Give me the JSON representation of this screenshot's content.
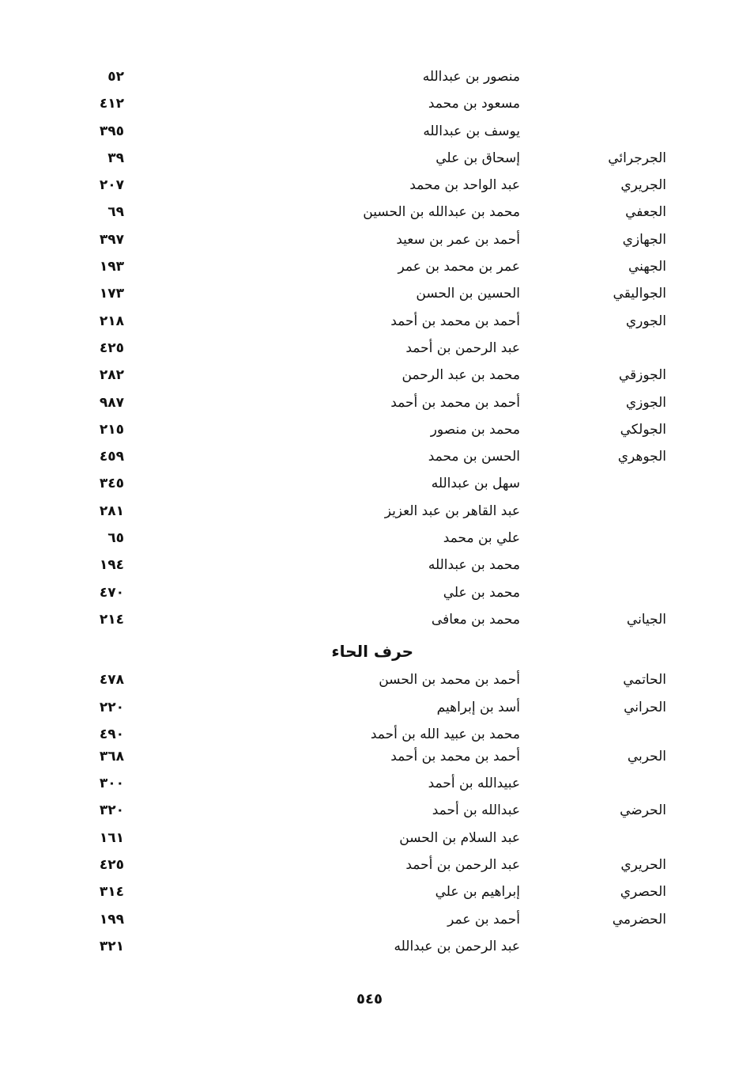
{
  "section1": [
    {
      "nisba": "",
      "name": "منصور بن عبدالله",
      "page": "٥٢"
    },
    {
      "nisba": "",
      "name": "مسعود بن محمد",
      "page": "٤١٢"
    },
    {
      "nisba": "",
      "name": "يوسف بن عبدالله",
      "page": "٣٩٥"
    },
    {
      "nisba": "الجرجرائي",
      "name": "إسحاق بن علي",
      "page": "٣٩"
    },
    {
      "nisba": "الجريري",
      "name": "عبد الواحد بن محمد",
      "page": "٢٠٧"
    },
    {
      "nisba": "الجعفي",
      "name": "محمد بن عبدالله بن الحسين",
      "page": "٦٩"
    },
    {
      "nisba": "الجهازي",
      "name": "أحمد بن عمر بن سعيد",
      "page": "٣٩٧"
    },
    {
      "nisba": "الجهني",
      "name": "عمر بن محمد بن عمر",
      "page": "١٩٣"
    },
    {
      "nisba": "الجواليقي",
      "name": "الحسين بن الحسن",
      "page": "١٧٣"
    },
    {
      "nisba": "الجوري",
      "name": "أحمد بن محمد بن أحمد",
      "page": "٢١٨"
    },
    {
      "nisba": "",
      "name": "عبد الرحمن بن أحمد",
      "page": "٤٢٥"
    },
    {
      "nisba": "الجوزقي",
      "name": "محمد بن عبد الرحمن",
      "page": "٢٨٢"
    },
    {
      "nisba": "الجوزي",
      "name": "أحمد بن محمد بن أحمد",
      "page": "٩٨٧"
    },
    {
      "nisba": "الجولكي",
      "name": "محمد بن منصور",
      "page": "٢١٥"
    },
    {
      "nisba": "الجوهري",
      "name": "الحسن بن محمد",
      "page": "٤٥٩"
    },
    {
      "nisba": "",
      "name": "سهل بن عبدالله",
      "page": "٣٤٥"
    },
    {
      "nisba": "",
      "name": "عبد القاهر بن عبد العزيز",
      "page": "٢٨١"
    },
    {
      "nisba": "",
      "name": "علي بن محمد",
      "page": "٦٥"
    },
    {
      "nisba": "",
      "name": "محمد بن عبدالله",
      "page": "١٩٤"
    },
    {
      "nisba": "",
      "name": "محمد بن علي",
      "page": "٤٧٠"
    },
    {
      "nisba": "الجياني",
      "name": "محمد بن معافى",
      "page": "٢١٤"
    }
  ],
  "heading": "حرف الحاء",
  "section2": [
    {
      "nisba": "الحاتمي",
      "name": "أحمد بن محمد بن الحسن",
      "page": "٤٧٨"
    },
    {
      "nisba": "الحراني",
      "name": "أسد بن إبراهيم",
      "page": "٢٢٠"
    },
    {
      "nisba": "",
      "name": "محمد بن عبيد الله بن أحمد",
      "page": "٤٩٠"
    },
    {
      "nisba": "الحربي",
      "name": "أحمد بن محمد بن أحمد",
      "page": "٣٦٨"
    },
    {
      "nisba": "",
      "name": "عبيدالله بن أحمد",
      "page": "٣٠٠"
    },
    {
      "nisba": "الحرضي",
      "name": "عبدالله بن أحمد",
      "page": "٣٢٠"
    },
    {
      "nisba": "",
      "name": "عبد السلام بن الحسن",
      "page": "١٦١"
    },
    {
      "nisba": "الحريري",
      "name": "عبد الرحمن بن أحمد",
      "page": "٤٢٥"
    },
    {
      "nisba": "الحصري",
      "name": "إبراهيم بن علي",
      "page": "٣١٤"
    },
    {
      "nisba": "الحضرمي",
      "name": "أحمد بن عمر",
      "page": "١٩٩"
    },
    {
      "nisba": "",
      "name": "عبد الرحمن بن عبدالله",
      "page": "٣٢١"
    }
  ],
  "page_number": "٥٤٥"
}
